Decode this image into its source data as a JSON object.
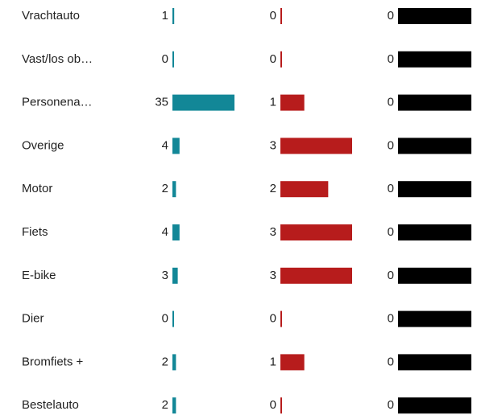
{
  "chart_data": {
    "type": "bar",
    "categories": [
      "Vrachtauto",
      "Vast/los ob…",
      "Personena…",
      "Overige",
      "Motor",
      "Fiets",
      "E-bike",
      "Dier",
      "Bromfiets +",
      "Bestelauto"
    ],
    "series": [
      {
        "color": "#128797",
        "values": [
          1,
          0,
          35,
          4,
          2,
          4,
          3,
          0,
          2,
          2
        ]
      },
      {
        "color": "#b71c1c",
        "values": [
          0,
          0,
          1,
          3,
          2,
          3,
          3,
          0,
          1,
          0
        ]
      },
      {
        "color": "#000000",
        "values": [
          0,
          0,
          0,
          0,
          0,
          0,
          0,
          0,
          0,
          0
        ]
      }
    ]
  }
}
